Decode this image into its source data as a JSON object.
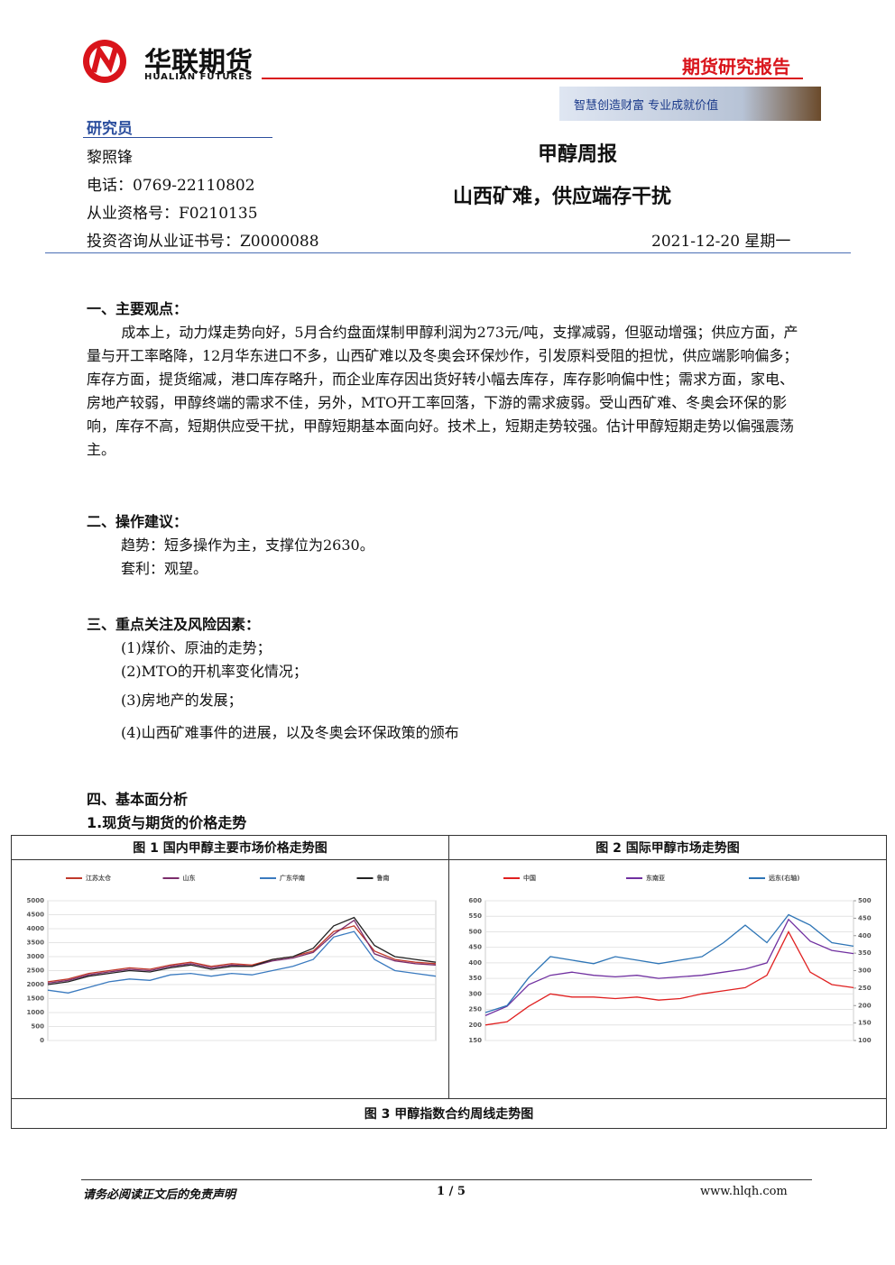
{
  "header": {
    "company": "华联期货",
    "company_en": "HUALIAN FUTURES",
    "report_type": "期货研究报告",
    "slogan": "智慧创造财富  专业成就价值"
  },
  "researcher": {
    "heading": "研究员",
    "name": "黎照锋",
    "phone": "电话：0769-22110802",
    "qualification": "从业资格号：F0210135",
    "license": "投资咨询从业证书号：Z0000088"
  },
  "title": "甲醇周报",
  "subtitle": "山西矿难，供应端存干扰",
  "date": "2021-12-20  星期一",
  "sections": [
    {
      "heading": "一、主要观点：",
      "paragraphs": [
        "成本上，动力煤走势向好，5月合约盘面煤制甲醇利润为273元/吨，支撑减弱，但驱动增强；供应方面，产量与开工率略降，12月华东进口不多，山西矿难以及冬奥会环保炒作，引发原料受阻的担忧，供应端影响偏多；库存方面，提货缩减，港口库存略升，而企业库存因出货好转小幅去库存，库存影响偏中性；需求方面，家电、房地产较弱，甲醇终端的需求不佳，另外，MTO开工率回落，下游的需求疲弱。受山西矿难、冬奥会环保的影响，库存不高，短期供应受干扰，甲醇短期基本面向好。技术上，短期走势较强。估计甲醇短期走势以偏强震荡主。"
      ]
    },
    {
      "heading": "二、操作建议：",
      "paragraphs": [
        "趋势：短多操作为主，支撑位为2630。",
        "套利：观望。"
      ]
    },
    {
      "heading": "三、重点关注及风险因素：",
      "paragraphs": [
        "(1)煤价、原油的走势；",
        "(2)MTO的开机率变化情况；",
        "(3)房地产的发展；",
        "(4)山西矿难事件的进展，以及冬奥会环保政策的颁布"
      ]
    },
    {
      "heading": "四、基本面分析",
      "paragraphs": []
    }
  ],
  "subheading": "1.现货与期货的价格走势",
  "figures": [
    {
      "type": "line",
      "title": "图 1  国内甲醇主要市场价格走势图",
      "ylim": [
        0,
        5000
      ],
      "yticks": [
        0,
        500,
        1000,
        1500,
        2000,
        2500,
        3000,
        3500,
        4000,
        4500,
        5000
      ],
      "series": [
        {
          "name": "江苏太仓",
          "color": "#c0392b",
          "values": [
            2100,
            2200,
            2400,
            2500,
            2600,
            2550,
            2700,
            2800,
            2650,
            2750,
            2700,
            2900,
            3000,
            3200,
            3900,
            4100,
            3200,
            2900,
            2800,
            2750
          ]
        },
        {
          "name": "山东",
          "color": "#7b2d6b",
          "values": [
            2050,
            2150,
            2350,
            2450,
            2550,
            2500,
            2650,
            2750,
            2600,
            2700,
            2650,
            2850,
            2950,
            3150,
            3800,
            4300,
            3100,
            2850,
            2750,
            2700
          ]
        },
        {
          "name": "广东华南",
          "color": "#3a7abf",
          "values": [
            1800,
            1700,
            1900,
            2100,
            2200,
            2150,
            2350,
            2400,
            2300,
            2400,
            2350,
            2500,
            2650,
            2900,
            3700,
            3900,
            2900,
            2500,
            2400,
            2300
          ]
        },
        {
          "name": "鲁南",
          "color": "#222222",
          "values": [
            2000,
            2100,
            2300,
            2400,
            2500,
            2450,
            2600,
            2700,
            2550,
            2650,
            2650,
            2900,
            3000,
            3300,
            4100,
            4400,
            3400,
            3000,
            2900,
            2800
          ]
        }
      ]
    },
    {
      "type": "line",
      "title": "图 2  国际甲醇市场走势图",
      "ylim": [
        150,
        600
      ],
      "yticks": [
        150,
        200,
        250,
        300,
        350,
        400,
        450,
        500,
        550,
        600
      ],
      "y2lim": [
        100,
        500
      ],
      "y2ticks": [
        100,
        150,
        200,
        250,
        300,
        350,
        400,
        450,
        500
      ],
      "series": [
        {
          "name": "中国",
          "color": "#e02020",
          "values": [
            200,
            210,
            260,
            300,
            290,
            290,
            285,
            290,
            280,
            285,
            300,
            310,
            320,
            360,
            500,
            370,
            330,
            320
          ]
        },
        {
          "name": "东南亚",
          "color": "#7030a0",
          "values": [
            230,
            260,
            330,
            360,
            370,
            360,
            355,
            360,
            350,
            355,
            360,
            370,
            380,
            400,
            540,
            470,
            440,
            430
          ]
        },
        {
          "name": "远东(右轴)",
          "color": "#2e75b6",
          "axis": "y2",
          "values": [
            180,
            200,
            280,
            340,
            330,
            320,
            340,
            330,
            320,
            330,
            340,
            380,
            430,
            380,
            460,
            430,
            380,
            370
          ]
        }
      ]
    }
  ],
  "figure3_title": "图 3  甲醇指数合约周线走势图",
  "footer": {
    "disclaimer": "请务必阅读正文后的免责声明",
    "page": "1 / 5",
    "website": "www.hlqh.com"
  }
}
